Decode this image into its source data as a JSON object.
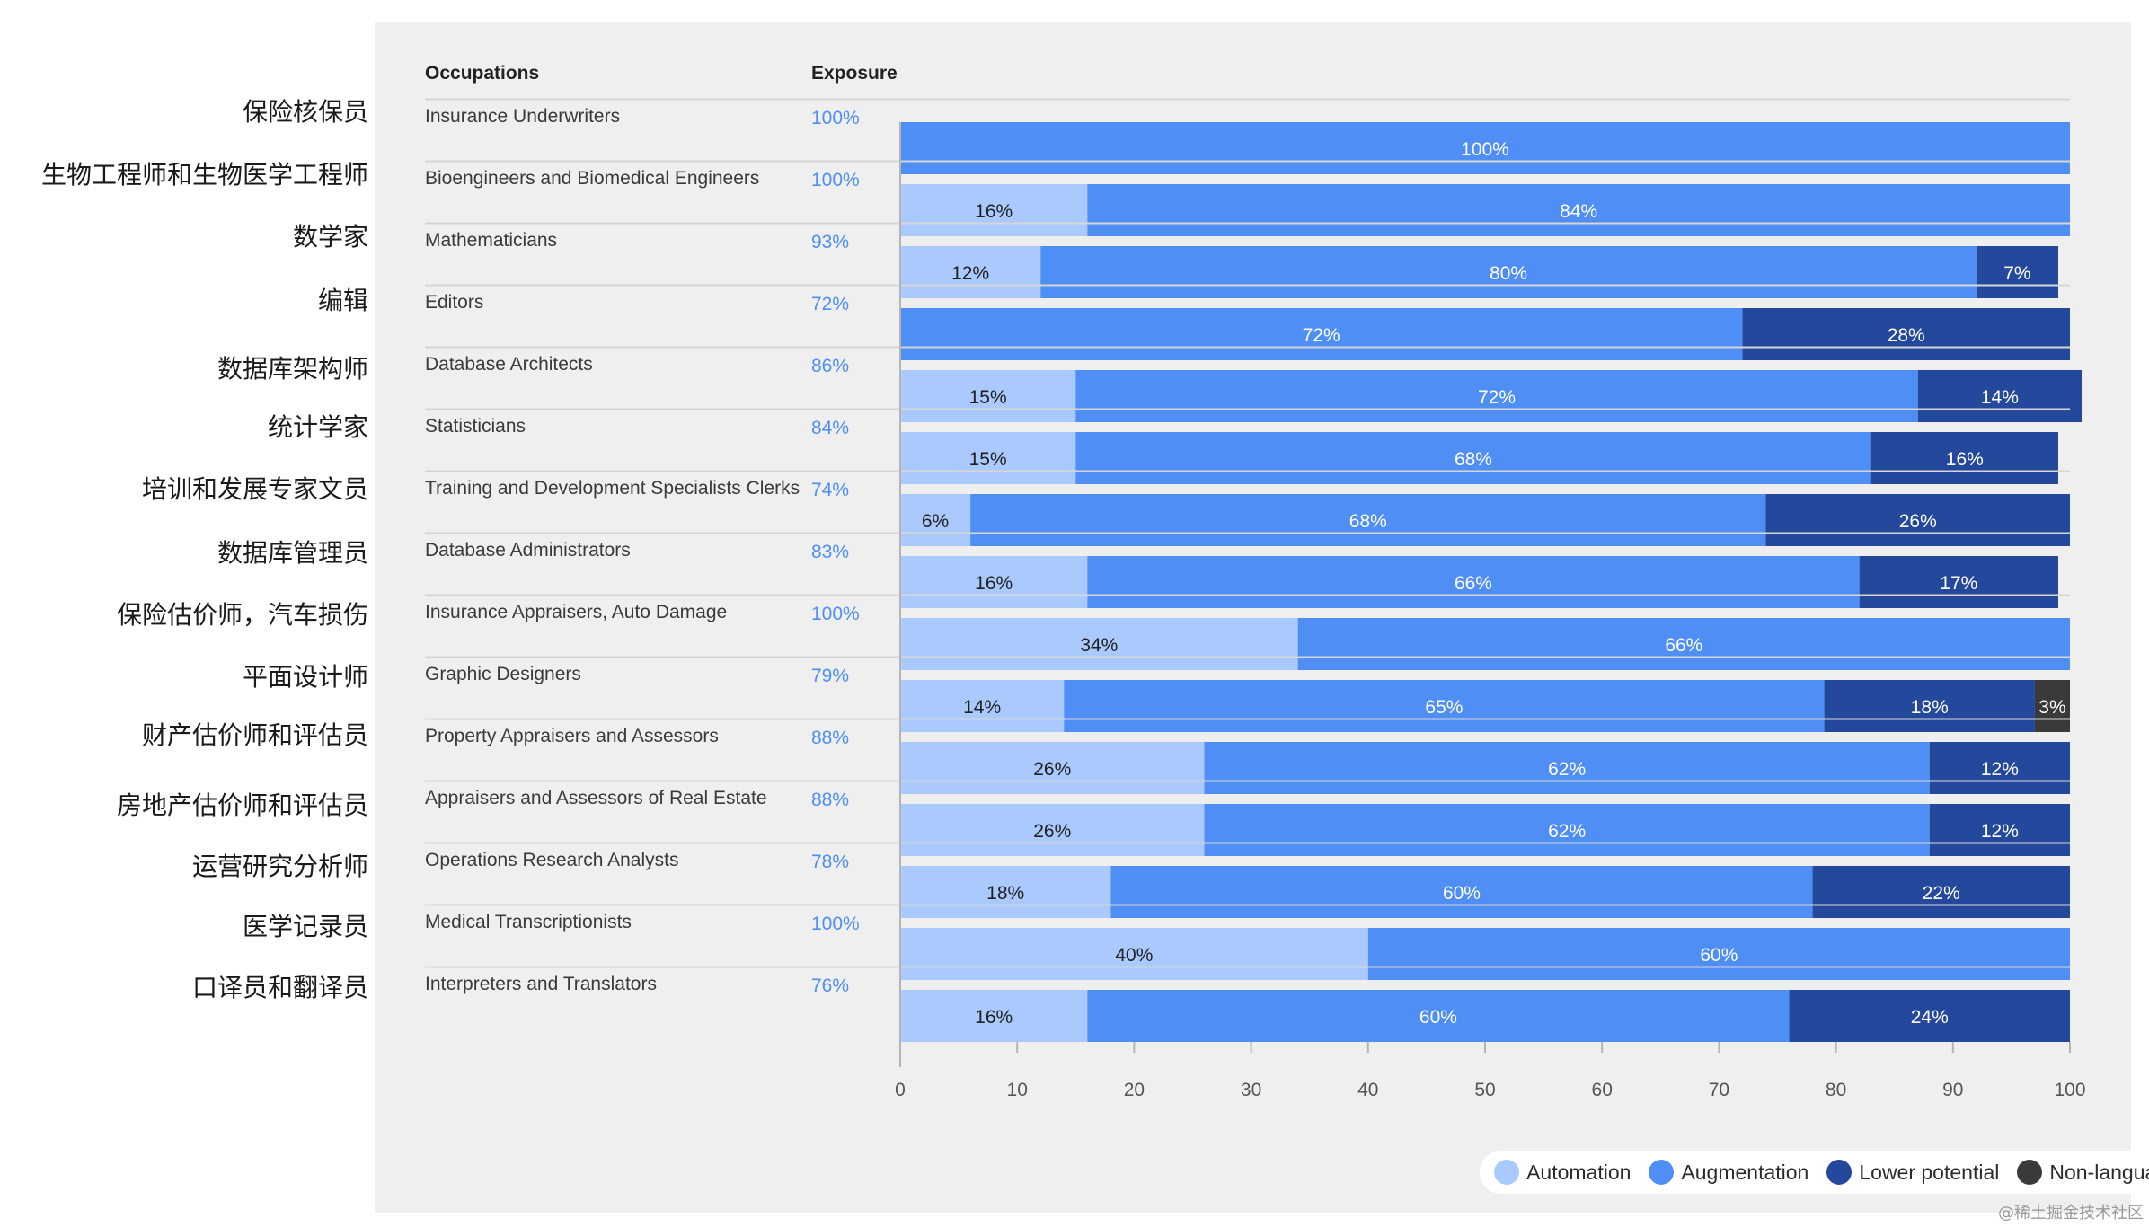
{
  "chart_data": {
    "type": "bar",
    "orientation": "horizontal",
    "stacked": true,
    "header": {
      "occupations": "Occupations",
      "exposure": "Exposure"
    },
    "categories": [
      "Insurance Underwriters",
      "Bioengineers and Biomedical Engineers",
      "Mathematicians",
      "Editors",
      "Database Architects",
      "Statisticians",
      "Training and Development Specialists Clerks",
      "Database Administrators",
      "Insurance Appraisers, Auto Damage",
      "Graphic Designers",
      "Property Appraisers and Assessors",
      "Appraisers and Assessors of Real Estate",
      "Operations Research Analysts",
      "Medical Transcriptionists",
      "Interpreters and Translators"
    ],
    "categories_zh": [
      "保险核保员",
      "生物工程师和生物医学工程师",
      "数学家",
      "编辑",
      "数据库架构师",
      "统计学家",
      "培训和发展专家文员",
      "数据库管理员",
      "保险估价师，汽车损伤",
      "平面设计师",
      "财产估价师和评估员",
      "房地产估价师和评估员",
      "运营研究分析师",
      "医学记录员",
      "口译员和翻译员"
    ],
    "exposure": [
      "100%",
      "100%",
      "93%",
      "72%",
      "86%",
      "84%",
      "74%",
      "83%",
      "100%",
      "79%",
      "88%",
      "88%",
      "78%",
      "100%",
      "76%"
    ],
    "series": [
      {
        "name": "Automation",
        "color": "#a9c9ff",
        "values": [
          0,
          16,
          12,
          0,
          15,
          15,
          6,
          16,
          34,
          14,
          26,
          26,
          18,
          40,
          16
        ]
      },
      {
        "name": "Augmentation",
        "color": "#4f8ff5",
        "values": [
          100,
          84,
          80,
          72,
          72,
          68,
          68,
          66,
          66,
          65,
          62,
          62,
          60,
          60,
          60
        ]
      },
      {
        "name": "Lower potential",
        "color": "#24499c",
        "values": [
          0,
          0,
          7,
          28,
          14,
          16,
          26,
          17,
          0,
          18,
          12,
          12,
          22,
          0,
          24
        ]
      },
      {
        "name": "Non-language tasks",
        "color": "#3a3a3a",
        "values": [
          0,
          0,
          0,
          0,
          0,
          0,
          0,
          0,
          0,
          3,
          0,
          0,
          0,
          0,
          0
        ]
      }
    ],
    "xlim": [
      0,
      100
    ],
    "xticks": [
      0,
      10,
      20,
      30,
      40,
      50,
      60,
      70,
      80,
      90,
      100
    ],
    "legend_position": "bottom-right"
  },
  "colors": {
    "exposure_text": "#4f8ff5",
    "panel_background": "#efefef"
  },
  "watermark": "@稀土掘金技术社区"
}
